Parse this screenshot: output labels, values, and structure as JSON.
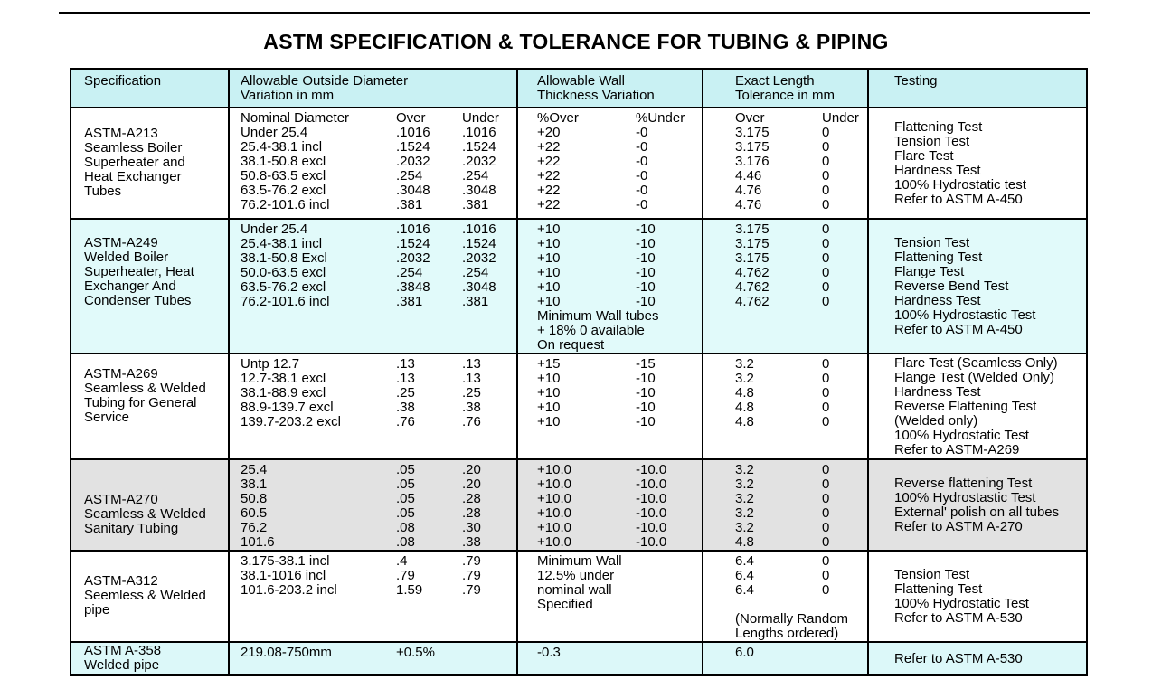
{
  "page": {
    "title": "ASTM SPECIFICATION & TOLERANCE FOR TUBING & PIPING"
  },
  "colors": {
    "header-bg": "#c9f1f3",
    "cyan-row": "#e1fafa",
    "gray-row": "#e2e2e2",
    "border": "#000000"
  },
  "table": {
    "headers": [
      {
        "line1": "Specification",
        "line2": ""
      },
      {
        "line1": "Allowable Outside Diameter",
        "line2": "Variation in mm"
      },
      {
        "line1": "Allowable Wall",
        "line2": "Thickness Variation"
      },
      {
        "line1": "Exact Length",
        "line2": "Tolerance in mm"
      },
      {
        "line1": "Testing",
        "line2": ""
      }
    ],
    "rows": [
      {
        "bg": "#ffffff",
        "spec": [
          "ASTM-A213",
          "Seamless Boiler",
          "Superheater and",
          "Heat Exchanger",
          "Tubes"
        ],
        "diameter": [
          [
            "Nominal Diameter",
            "Over",
            "Under"
          ],
          [
            "Under 25.4",
            ".1016",
            ".1016"
          ],
          [
            "25.4-38.1 incl",
            ".1524",
            ".1524"
          ],
          [
            "38.1-50.8 excl",
            ".2032",
            ".2032"
          ],
          [
            "50.8-63.5 excl",
            ".254",
            ".254"
          ],
          [
            "63.5-76.2 excl",
            ".3048",
            ".3048"
          ],
          [
            "76.2-101.6 incl",
            ".381",
            ".381"
          ]
        ],
        "wall": [
          [
            "%Over",
            "%Under"
          ],
          [
            "+20",
            "-0"
          ],
          [
            "+22",
            "-0"
          ],
          [
            "+22",
            "-0"
          ],
          [
            "+22",
            "-0"
          ],
          [
            "+22",
            "-0"
          ],
          [
            "+22",
            "-0"
          ]
        ],
        "length": [
          [
            "Over",
            "Under"
          ],
          [
            "3.175",
            "0"
          ],
          [
            "3.175",
            "0"
          ],
          [
            "3.176",
            "0"
          ],
          [
            "4.46",
            "0"
          ],
          [
            "4.76",
            "0"
          ],
          [
            "4.76",
            "0"
          ]
        ],
        "testing": [
          "Flattening Test",
          "Tension Test",
          "Flare Test",
          "Hardness Test",
          "100% Hydrostatic test",
          "Refer to ASTM A-450"
        ]
      },
      {
        "bg": "#e1fafa",
        "spec": [
          "ASTM-A249",
          "Welded Boiler",
          "Superheater, Heat",
          "Exchanger And",
          "Condenser Tubes"
        ],
        "diameter": [
          [
            "Under 25.4",
            ".1016",
            ".1016"
          ],
          [
            "25.4-38.1 incl",
            ".1524",
            ".1524"
          ],
          [
            "38.1-50.8 Excl",
            ".2032",
            ".2032"
          ],
          [
            "50.0-63.5 excl",
            ".254",
            ".254"
          ],
          [
            "63.5-76.2 excl",
            ".3848",
            ".3048"
          ],
          [
            "76.2-101.6 incl",
            ".381",
            ".381"
          ]
        ],
        "wall": [
          [
            "+10",
            "-10"
          ],
          [
            "+10",
            "-10"
          ],
          [
            "+10",
            "-10"
          ],
          [
            "+10",
            "-10"
          ],
          [
            "+10",
            "-10"
          ],
          [
            "+10",
            "-10"
          ],
          [
            "Minimum Wall tubes"
          ],
          [
            "+ 18% 0 available"
          ],
          [
            "On request"
          ]
        ],
        "length": [
          [
            "3.175",
            "0"
          ],
          [
            "3.175",
            "0"
          ],
          [
            "3.175",
            "0"
          ],
          [
            "4.762",
            "0"
          ],
          [
            "4.762",
            "0"
          ],
          [
            "4.762",
            "0"
          ]
        ],
        "testing": [
          "Tension Test",
          "Flattening Test",
          "Flange Test",
          "Reverse Bend Test",
          "Hardness Test",
          "100% Hydrostastic Test",
          "Refer to ASTM A-450"
        ]
      },
      {
        "bg": "#ffffff",
        "spec": [
          "ASTM-A269",
          "Seamless & Welded",
          "Tubing for General",
          "Service"
        ],
        "diameter": [
          [
            "Untp 12.7",
            ".13",
            ".13"
          ],
          [
            "12.7-38.1 excl",
            ".13",
            ".13"
          ],
          [
            "38.1-88.9 excl",
            ".25",
            ".25"
          ],
          [
            "88.9-139.7 excl",
            ".38",
            ".38"
          ],
          [
            "139.7-203.2 excl",
            ".76",
            ".76"
          ]
        ],
        "wall": [
          [
            "+15",
            "-15"
          ],
          [
            "+10",
            "-10"
          ],
          [
            "+10",
            "-10"
          ],
          [
            "+10",
            "-10"
          ],
          [
            "+10",
            "-10"
          ]
        ],
        "length": [
          [
            "3.2",
            "0"
          ],
          [
            "3.2",
            "0"
          ],
          [
            "4.8",
            "0"
          ],
          [
            "4.8",
            "0"
          ],
          [
            "4.8",
            "0"
          ]
        ],
        "testing": [
          "Flare Test (Seamless Only)",
          "Flange Test (Welded Only)",
          "Hardness Test",
          "Reverse Flattening Test",
          "(Welded only)",
          "100% Hydrostatic Test",
          "Refer to ASTM-A269"
        ]
      },
      {
        "bg": "#e2e2e2",
        "spec": [
          "ASTM-A270",
          "Seamless & Welded",
          "Sanitary Tubing"
        ],
        "diameter": [
          [
            "25.4",
            ".05",
            ".20"
          ],
          [
            "38.1",
            ".05",
            ".20"
          ],
          [
            "50.8",
            ".05",
            ".28"
          ],
          [
            "60.5",
            ".05",
            ".28"
          ],
          [
            "76.2",
            ".08",
            ".30"
          ],
          [
            "101.6",
            ".08",
            ".38"
          ]
        ],
        "wall": [
          [
            "+10.0",
            "-10.0"
          ],
          [
            "+10.0",
            "-10.0"
          ],
          [
            "+10.0",
            "-10.0"
          ],
          [
            "+10.0",
            "-10.0"
          ],
          [
            "+10.0",
            "-10.0"
          ],
          [
            "+10.0",
            "-10.0"
          ]
        ],
        "length": [
          [
            "3.2",
            "0"
          ],
          [
            "3.2",
            "0"
          ],
          [
            "3.2",
            "0"
          ],
          [
            "3.2",
            "0"
          ],
          [
            "3.2",
            "0"
          ],
          [
            "4.8",
            "0"
          ]
        ],
        "testing": [
          "Reverse flattening Test",
          "100% Hydrostastic Test",
          "External' polish on all tubes",
          "Refer to ASTM A-270"
        ]
      },
      {
        "bg": "#ffffff",
        "spec": [
          "ASTM-A312",
          "Seemless & Welded",
          "pipe"
        ],
        "diameter": [
          [
            "3.175-38.1 incl",
            ".4",
            ".79"
          ],
          [
            "38.1-1016 incl",
            ".79",
            ".79"
          ],
          [
            "101.6-203.2 incl",
            "1.59",
            ".79"
          ]
        ],
        "wall": [
          [
            "Minimum Wall"
          ],
          [
            "12.5% under"
          ],
          [
            "nominal wall"
          ],
          [
            "Specified"
          ]
        ],
        "length": [
          [
            "6.4",
            "0"
          ],
          [
            "6.4",
            "0"
          ],
          [
            "6.4",
            "0"
          ],
          [
            ""
          ],
          [
            "(Normally Random"
          ],
          [
            "Lengths ordered)"
          ]
        ],
        "testing": [
          "Tension Test",
          "Flattening Test",
          "100% Hydrostatic Test",
          "Refer to ASTM A-530"
        ]
      },
      {
        "bg": "#dcf8f9",
        "spec": [
          "ASTM A-358",
          "Welded pipe"
        ],
        "diameter": [
          [
            "219.08-750mm",
            "+0.5%",
            ""
          ]
        ],
        "wall": [
          [
            "-0.3",
            ""
          ]
        ],
        "length": [
          [
            "6.0",
            ""
          ]
        ],
        "testing": [
          "Refer to ASTM A-530"
        ]
      }
    ]
  }
}
